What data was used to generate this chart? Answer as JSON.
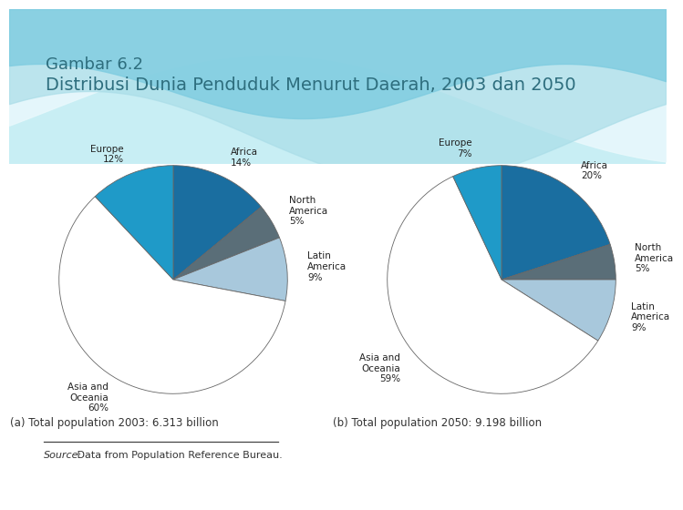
{
  "title_line1": "Gambar 6.2",
  "title_line2": "Distribusi Dunia Penduduk Menurut Daerah, 2003 dan 2050",
  "title_color": "#2E6E7E",
  "pie2003": {
    "labels": [
      "Africa\n14%",
      "North\nAmerica\n5%",
      "Latin\nAmerica\n9%",
      "Asia and\nOceania\n60%",
      "Europe\n12%"
    ],
    "values": [
      14,
      5,
      9,
      60,
      12
    ],
    "colors": [
      "#1A6EA0",
      "#5A6E78",
      "#A8C8DC",
      "#FFFFFF",
      "#1F9AC8"
    ],
    "caption": "(a) Total population 2003: 6.313 billion",
    "startangle": 90
  },
  "pie2050": {
    "labels": [
      "Africa\n20%",
      "North\nAmerica\n5%",
      "Latin\nAmerica\n9%",
      "Asia and\nOceania\n59%",
      "Europe\n7%"
    ],
    "values": [
      20,
      5,
      9,
      59,
      7
    ],
    "colors": [
      "#1A6EA0",
      "#5A6E78",
      "#A8C8DC",
      "#FFFFFF",
      "#1F9AC8"
    ],
    "caption": "(b) Total population 2050: 9.198 billion",
    "startangle": 90
  },
  "source_label": "Source:",
  "source_rest": " Data from Population Reference Bureau.",
  "label_fontsize": 7.5,
  "caption_fontsize": 8.5,
  "source_fontsize": 8
}
